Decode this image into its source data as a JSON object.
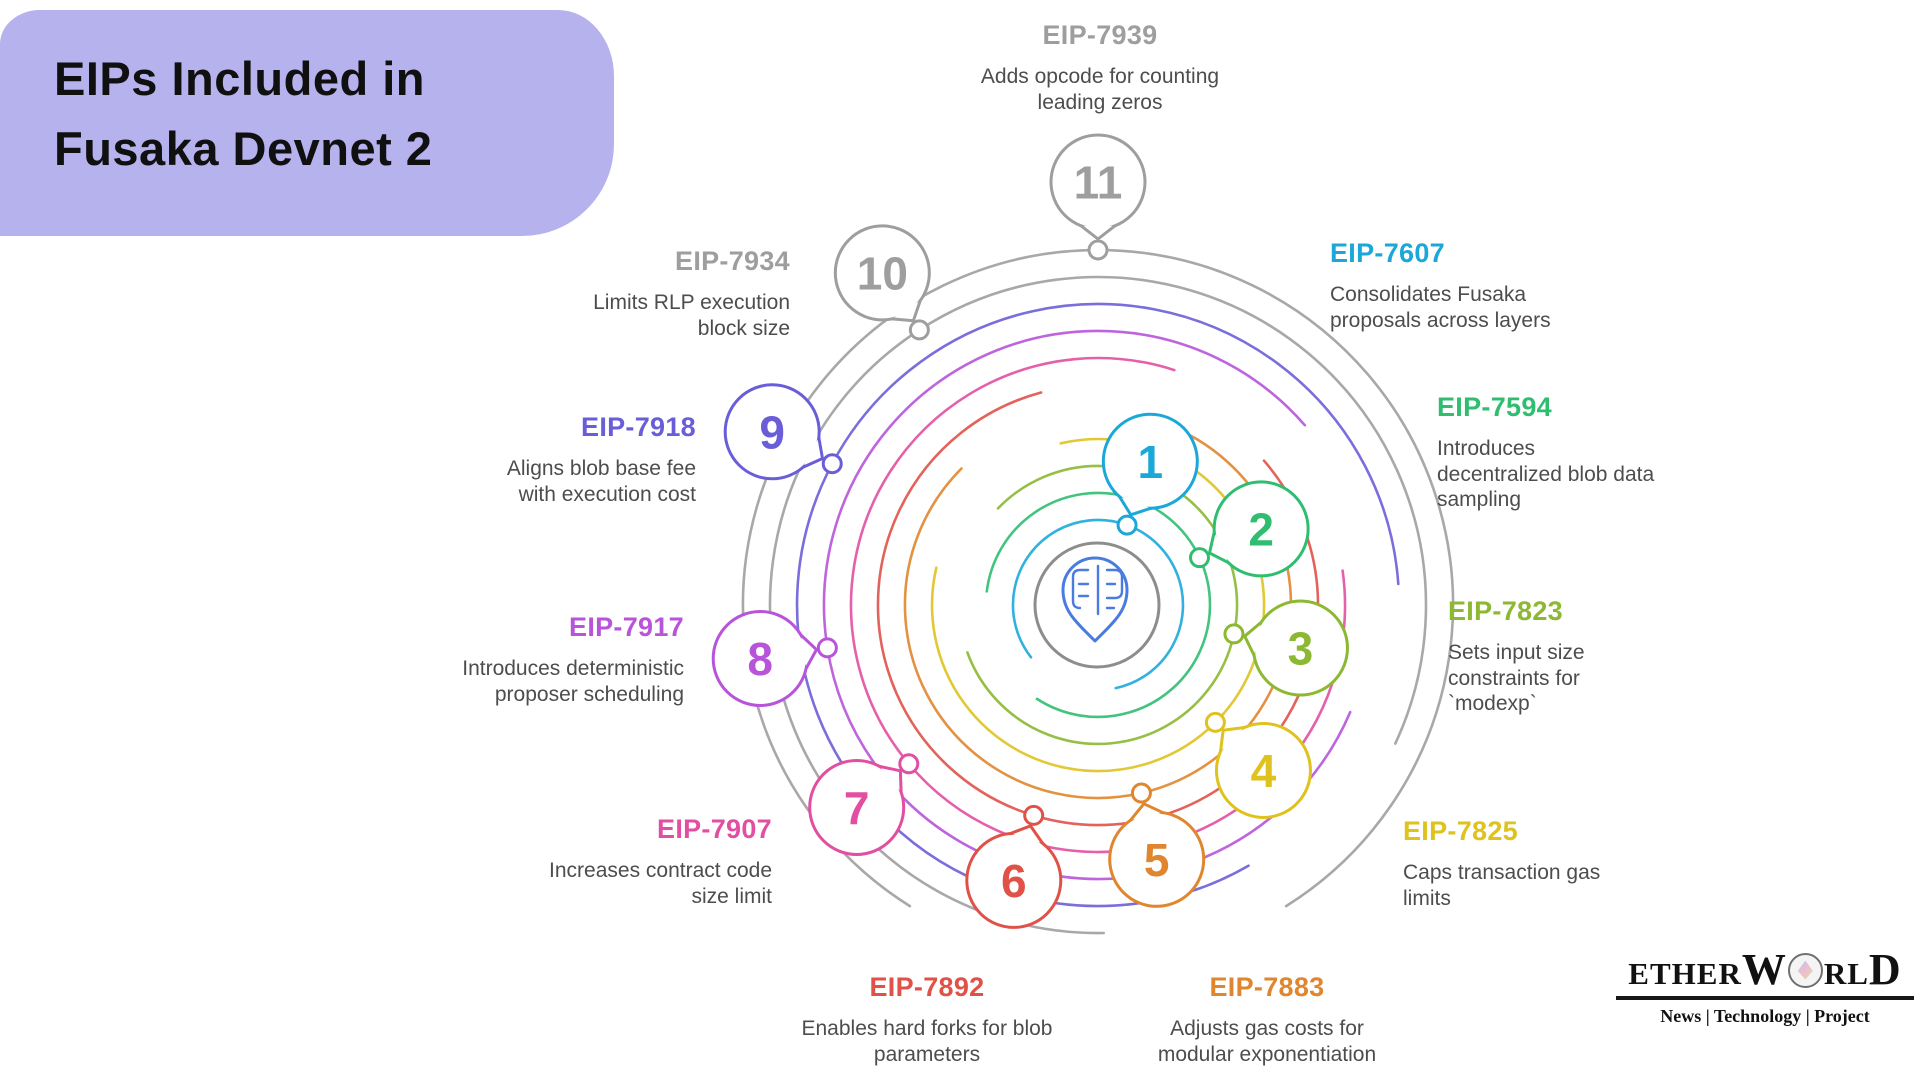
{
  "header": {
    "title_line1": "EIPs Included in",
    "title_line2": "Fusaka Devnet 2",
    "bg_color": "#b6b2ee"
  },
  "diagram": {
    "center_icon": "eip-location-pin-logo",
    "center_ring_color": "#8d8d8d",
    "pin_color": "#4a7ce0",
    "nodes": [
      {
        "num": "1",
        "eip": "EIP-7607",
        "color": "#1ba8d9",
        "desc_lines": [
          "Consolidates Fusaka",
          "proposals across layers"
        ]
      },
      {
        "num": "2",
        "eip": "EIP-7594",
        "color": "#2fbe70",
        "desc_lines": [
          "Introduces",
          "decentralized blob data",
          "sampling"
        ]
      },
      {
        "num": "3",
        "eip": "EIP-7823",
        "color": "#8cb832",
        "desc_lines": [
          "Sets input size",
          "constraints for",
          "`modexp`"
        ]
      },
      {
        "num": "4",
        "eip": "EIP-7825",
        "color": "#dfc21e",
        "desc_lines": [
          "Caps transaction gas",
          "limits"
        ]
      },
      {
        "num": "5",
        "eip": "EIP-7883",
        "color": "#e0862e",
        "desc_lines": [
          "Adjusts gas costs for",
          "modular exponentiation"
        ]
      },
      {
        "num": "6",
        "eip": "EIP-7892",
        "color": "#e05148",
        "desc_lines": [
          "Enables hard forks for blob",
          "parameters"
        ]
      },
      {
        "num": "7",
        "eip": "EIP-7907",
        "color": "#e24fa2",
        "desc_lines": [
          "Increases contract code",
          "size limit"
        ]
      },
      {
        "num": "8",
        "eip": "EIP-7917",
        "color": "#b754d9",
        "desc_lines": [
          "Introduces deterministic",
          "proposer scheduling"
        ]
      },
      {
        "num": "9",
        "eip": "EIP-7918",
        "color": "#6a5ed8",
        "desc_lines": [
          "Aligns blob base fee",
          "with execution cost"
        ]
      },
      {
        "num": "10",
        "eip": "EIP-7934",
        "color": "#9e9e9e",
        "desc_lines": [
          "Limits RLP execution",
          "block size"
        ]
      },
      {
        "num": "11",
        "eip": "EIP-7939",
        "color": "#9e9e9e",
        "desc_lines": [
          "Adds opcode for counting",
          "leading zeros"
        ]
      }
    ]
  },
  "branding": {
    "name": "EtherWorld",
    "name_parts": [
      "Ether",
      "W",
      "rl",
      "D"
    ],
    "tagline": "News | Technology | Project"
  }
}
